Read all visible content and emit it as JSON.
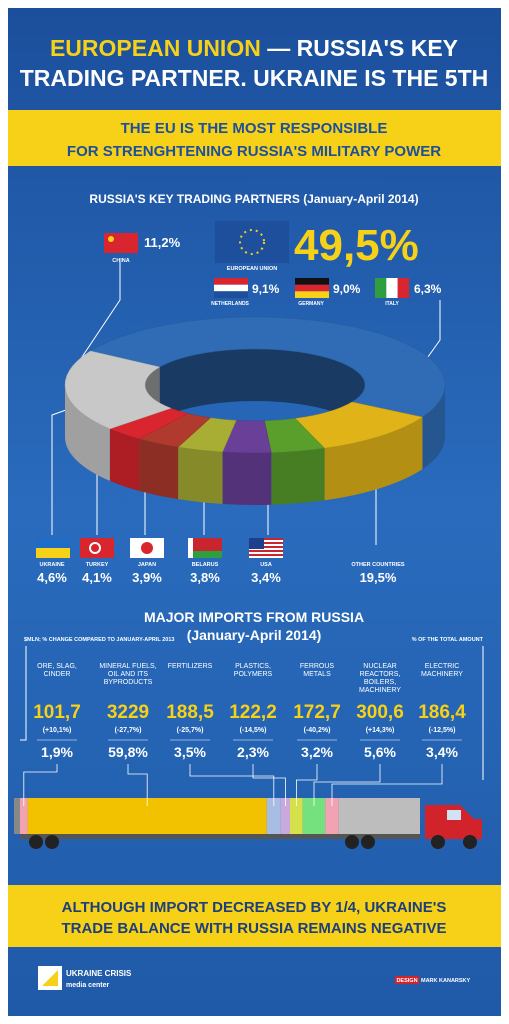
{
  "header": {
    "title_highlight": "EUROPEAN UNION",
    "title_rest": "— RUSSIA'S KEY",
    "title_line2": "TRADING PARTNER. UKRAINE IS THE 5TH"
  },
  "banner": {
    "line1": "THE EU IS THE MOST RESPONSIBLE",
    "line2": "FOR STRENGHTENING RUSSIA'S MILITARY POWER"
  },
  "eu_members": [
    {
      "name": "NETHERLANDS",
      "share": "9,1%"
    },
    {
      "name": "GERMANY",
      "share": "9,0%"
    },
    {
      "name": "ITALY",
      "share": "6,3%"
    }
  ],
  "chart_data": [
    {
      "type": "donut",
      "title": "RUSSIA'S KEY TRADING PARTNERS (January-April 2014)",
      "categories": [
        "EUROPEAN UNION",
        "CHINA",
        "UKRAINE",
        "TURKEY",
        "JAPAN",
        "BELARUS",
        "USA",
        "OTHER COUNTRIES"
      ],
      "values": [
        49.5,
        11.2,
        4.6,
        4.1,
        3.9,
        3.8,
        3.4,
        19.5
      ],
      "value_labels": [
        "49,5%",
        "11,2%",
        "4,6%",
        "4,1%",
        "3,9%",
        "3,8%",
        "3,4%",
        "19,5%"
      ],
      "colors": [
        "#2f6cb5",
        "#e0b418",
        "#5a9e2c",
        "#6a3f98",
        "#a8ad34",
        "#b03a2e",
        "#d8252e",
        "#c8c8c8"
      ]
    },
    {
      "type": "truck",
      "title": "MAJOR IMPORTS FROM RUSSIA",
      "subtitle": "(January-April 2014)",
      "note_left": "$MLN; % CHANGE COMPARED TO JANUARY-APRIL 2013",
      "note_right": "% OF THE TOTAL AMOUNT",
      "categories": [
        "ORE, SLAG, CINDER",
        "MINERAL FUELS, OIL AND ITS BYPRODUCTS",
        "FERTILIZERS",
        "PLASTICS, POLYMERS",
        "FERROUS METALS",
        "NUCLEAR REACTORS, BOILERS, MACHINERY",
        "ELECTRIC MACHINERY"
      ],
      "values": [
        101.7,
        3229,
        188.5,
        122.2,
        172.7,
        300.6,
        186.4
      ],
      "value_labels": [
        "101,7",
        "3229",
        "188,5",
        "122,2",
        "172,7",
        "300,6",
        "186,4"
      ],
      "changes": [
        10.1,
        -27.7,
        -25.7,
        -14.5,
        -40.2,
        14.3,
        -12.5
      ],
      "change_labels": [
        "(+10,1%)",
        "(-27,7%)",
        "(-25,7%)",
        "(-14,5%)",
        "(-40,2%)",
        "(+14,3%)",
        "(-12,5%)"
      ],
      "shares": [
        1.9,
        59.8,
        3.5,
        2.3,
        3.2,
        5.6,
        3.4
      ],
      "share_labels": [
        "1,9%",
        "59,8%",
        "3,5%",
        "2,3%",
        "3,2%",
        "5,6%",
        "3,4%"
      ],
      "colors": [
        "#f2a3b3",
        "#f2c200",
        "#a7bde3",
        "#c9a9dc",
        "#d6e04a",
        "#74e07e",
        "#f2a3b3"
      ]
    }
  ],
  "footer": {
    "line1": "ALTHOUGH IMPORT DECREASED BY 1/4, UKRAINE'S",
    "line2": "TRADE BALANCE WITH RUSSIA REMAINS NEGATIVE"
  },
  "logo": {
    "line1": "UKRAINE CRISIS",
    "line2": "media center"
  },
  "credit": {
    "label": "DESIGN",
    "name": "MARK KANARSKY"
  }
}
